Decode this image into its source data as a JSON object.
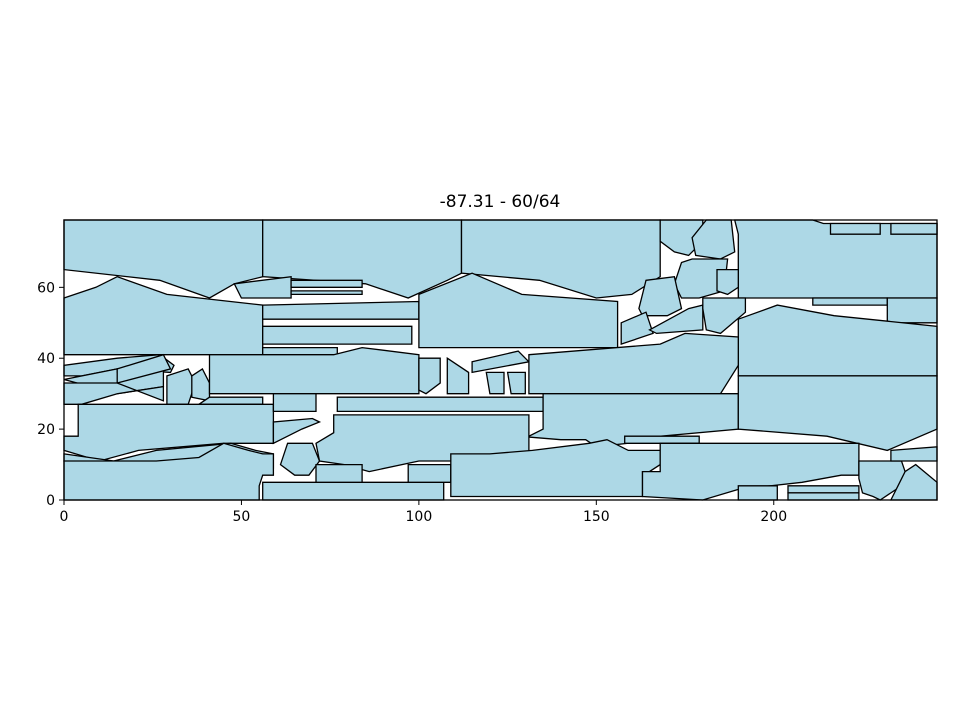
{
  "chart_data": {
    "type": "polygon-packing",
    "title": "-87.31 - 60/64",
    "xlabel": "",
    "ylabel": "",
    "xlim": [
      0,
      246
    ],
    "ylim": [
      0,
      79
    ],
    "x_ticks": [
      0,
      50,
      100,
      150,
      200
    ],
    "y_ticks": [
      0,
      20,
      40,
      60
    ],
    "grid": false,
    "legend": "none",
    "fill_color": "#add8e6",
    "edge_color": "#000000",
    "pieces": [
      [
        [
          0,
          79
        ],
        [
          56,
          79
        ],
        [
          56,
          63
        ],
        [
          48,
          61
        ],
        [
          41,
          57
        ],
        [
          27,
          62
        ],
        [
          0,
          65
        ]
      ],
      [
        [
          56,
          79
        ],
        [
          112,
          79
        ],
        [
          112,
          64
        ],
        [
          108,
          62
        ],
        [
          97,
          57
        ],
        [
          85,
          61
        ],
        [
          56,
          63
        ]
      ],
      [
        [
          112,
          79
        ],
        [
          168,
          79
        ],
        [
          168,
          63
        ],
        [
          160,
          58
        ],
        [
          150,
          57
        ],
        [
          134,
          62
        ],
        [
          112,
          64
        ]
      ],
      [
        [
          0,
          57
        ],
        [
          9,
          60
        ],
        [
          15,
          63
        ],
        [
          29,
          58
        ],
        [
          56,
          55
        ],
        [
          56,
          41
        ],
        [
          0,
          41
        ]
      ],
      [
        [
          56,
          55
        ],
        [
          56,
          51
        ],
        [
          100,
          51
        ],
        [
          100,
          56
        ]
      ],
      [
        [
          56,
          49
        ],
        [
          56,
          44
        ],
        [
          98,
          44
        ],
        [
          98,
          49
        ]
      ],
      [
        [
          56,
          43
        ],
        [
          56,
          41
        ],
        [
          77,
          41
        ],
        [
          77,
          43
        ]
      ],
      [
        [
          100,
          58
        ],
        [
          115,
          64
        ],
        [
          129,
          58
        ],
        [
          156,
          56
        ],
        [
          156,
          43
        ],
        [
          100,
          43
        ]
      ],
      [
        [
          48,
          61
        ],
        [
          64,
          63
        ],
        [
          64,
          57
        ],
        [
          50,
          57
        ]
      ],
      [
        [
          64,
          62
        ],
        [
          64,
          60
        ],
        [
          84,
          60
        ],
        [
          84,
          62
        ]
      ],
      [
        [
          64,
          59
        ],
        [
          64,
          58
        ],
        [
          84,
          58
        ],
        [
          84,
          59
        ]
      ],
      [
        [
          168,
          79
        ],
        [
          180,
          79
        ],
        [
          180,
          73
        ],
        [
          176,
          69
        ],
        [
          172,
          70
        ],
        [
          168,
          73
        ]
      ],
      [
        [
          181,
          79
        ],
        [
          188,
          79
        ],
        [
          189,
          70
        ],
        [
          185,
          68
        ],
        [
          178,
          69
        ],
        [
          177,
          74
        ]
      ],
      [
        [
          189,
          79
        ],
        [
          211,
          79
        ],
        [
          214,
          78
        ],
        [
          246,
          78
        ],
        [
          246,
          57
        ],
        [
          190,
          57
        ],
        [
          190,
          75
        ]
      ],
      [
        [
          216,
          78
        ],
        [
          230,
          78
        ],
        [
          230,
          75
        ],
        [
          216,
          75
        ]
      ],
      [
        [
          233,
          78
        ],
        [
          246,
          78
        ],
        [
          246,
          75
        ],
        [
          233,
          75
        ]
      ],
      [
        [
          177,
          68
        ],
        [
          187,
          68
        ],
        [
          186,
          59
        ],
        [
          179,
          57
        ],
        [
          174,
          57
        ],
        [
          172,
          61
        ],
        [
          174,
          67
        ]
      ],
      [
        [
          184,
          65
        ],
        [
          190,
          65
        ],
        [
          190,
          60
        ],
        [
          187,
          58
        ],
        [
          184,
          59
        ]
      ],
      [
        [
          164,
          62
        ],
        [
          172,
          63
        ],
        [
          174,
          54
        ],
        [
          170,
          52
        ],
        [
          163,
          52
        ],
        [
          162,
          54
        ]
      ],
      [
        [
          157,
          50
        ],
        [
          164,
          53
        ],
        [
          166,
          47
        ],
        [
          157,
          44
        ]
      ],
      [
        [
          165,
          48
        ],
        [
          176,
          54
        ],
        [
          180,
          55
        ],
        [
          180,
          48
        ],
        [
          167,
          47
        ]
      ],
      [
        [
          180,
          57
        ],
        [
          192,
          57
        ],
        [
          192,
          53
        ],
        [
          185,
          47
        ],
        [
          181,
          48
        ],
        [
          180,
          54
        ]
      ],
      [
        [
          211,
          57
        ],
        [
          232,
          57
        ],
        [
          232,
          55
        ],
        [
          211,
          55
        ]
      ],
      [
        [
          232,
          57
        ],
        [
          246,
          57
        ],
        [
          246,
          50
        ],
        [
          232,
          50
        ]
      ],
      [
        [
          190,
          51
        ],
        [
          201,
          55
        ],
        [
          217,
          52
        ],
        [
          246,
          49
        ],
        [
          246,
          35
        ],
        [
          190,
          35
        ]
      ],
      [
        [
          0,
          38
        ],
        [
          0,
          35
        ],
        [
          5,
          35
        ],
        [
          15,
          37
        ],
        [
          30,
          36
        ],
        [
          31,
          38
        ],
        [
          27,
          41
        ],
        [
          15,
          40
        ]
      ],
      [
        [
          0,
          34
        ],
        [
          15,
          37
        ],
        [
          15,
          36
        ],
        [
          28,
          37
        ],
        [
          28,
          32
        ],
        [
          15,
          30
        ]
      ],
      [
        [
          15,
          37
        ],
        [
          28,
          41
        ],
        [
          30,
          37
        ],
        [
          15,
          33
        ]
      ],
      [
        [
          0,
          33
        ],
        [
          0,
          27
        ],
        [
          5,
          27
        ],
        [
          15,
          30
        ],
        [
          28,
          32
        ],
        [
          28,
          28
        ],
        [
          15,
          33
        ]
      ],
      [
        [
          29,
          35
        ],
        [
          35,
          37
        ],
        [
          37,
          33
        ],
        [
          35,
          27
        ],
        [
          29,
          27
        ]
      ],
      [
        [
          36,
          29
        ],
        [
          41,
          28
        ],
        [
          41,
          33
        ],
        [
          39,
          37
        ],
        [
          36,
          35
        ]
      ],
      [
        [
          38,
          27
        ],
        [
          41,
          29
        ],
        [
          53,
          29
        ],
        [
          56,
          29
        ],
        [
          56,
          27
        ]
      ],
      [
        [
          41,
          41
        ],
        [
          41,
          30
        ],
        [
          100,
          30
        ],
        [
          100,
          34
        ],
        [
          100,
          41
        ],
        [
          84,
          43
        ],
        [
          76,
          41
        ],
        [
          68,
          41
        ]
      ],
      [
        [
          100,
          40
        ],
        [
          106,
          40
        ],
        [
          106,
          33
        ],
        [
          102,
          30
        ],
        [
          100,
          31
        ]
      ],
      [
        [
          108,
          40
        ],
        [
          114,
          36
        ],
        [
          114,
          30
        ],
        [
          108,
          30
        ]
      ],
      [
        [
          115,
          39
        ],
        [
          128,
          42
        ],
        [
          131,
          39
        ],
        [
          115,
          36
        ]
      ],
      [
        [
          119,
          36
        ],
        [
          124,
          36
        ],
        [
          124,
          30
        ],
        [
          120,
          30
        ]
      ],
      [
        [
          125,
          36
        ],
        [
          130,
          36
        ],
        [
          130,
          30
        ],
        [
          126,
          30
        ]
      ],
      [
        [
          131,
          41
        ],
        [
          168,
          44
        ],
        [
          175,
          47
        ],
        [
          190,
          46
        ],
        [
          190,
          38
        ],
        [
          185,
          30
        ],
        [
          131,
          30
        ]
      ],
      [
        [
          4,
          27
        ],
        [
          4,
          18
        ],
        [
          0,
          18
        ],
        [
          0,
          14
        ],
        [
          10,
          11
        ],
        [
          21,
          14
        ],
        [
          45,
          16
        ],
        [
          59,
          16
        ],
        [
          59,
          27
        ]
      ],
      [
        [
          59,
          30
        ],
        [
          59,
          25
        ],
        [
          71,
          25
        ],
        [
          71,
          30
        ]
      ],
      [
        [
          77,
          29
        ],
        [
          77,
          25
        ],
        [
          135,
          25
        ],
        [
          135,
          29
        ]
      ],
      [
        [
          135,
          30
        ],
        [
          135,
          20
        ],
        [
          131,
          18
        ],
        [
          128,
          18
        ],
        [
          140,
          17
        ],
        [
          147,
          17
        ],
        [
          150,
          15
        ],
        [
          168,
          17
        ],
        [
          168,
          18
        ],
        [
          190,
          20
        ],
        [
          190,
          30
        ]
      ],
      [
        [
          190,
          35
        ],
        [
          190,
          20
        ],
        [
          215,
          18
        ],
        [
          232,
          14
        ],
        [
          246,
          20
        ],
        [
          246,
          35
        ]
      ],
      [
        [
          158,
          18
        ],
        [
          179,
          18
        ],
        [
          179,
          16
        ],
        [
          158,
          16
        ]
      ],
      [
        [
          0,
          11
        ],
        [
          0,
          13
        ],
        [
          14,
          11
        ],
        [
          26,
          14
        ],
        [
          47,
          16
        ],
        [
          54,
          14
        ],
        [
          59,
          13
        ],
        [
          59,
          9
        ]
      ],
      [
        [
          59,
          22
        ],
        [
          59,
          16
        ],
        [
          67,
          20
        ],
        [
          72,
          22
        ],
        [
          70,
          23
        ]
      ],
      [
        [
          63,
          16
        ],
        [
          70,
          16
        ],
        [
          72,
          11
        ],
        [
          69,
          7
        ],
        [
          65,
          7
        ],
        [
          61,
          10
        ]
      ],
      [
        [
          76,
          24
        ],
        [
          76,
          19
        ],
        [
          71,
          16
        ],
        [
          72,
          11
        ],
        [
          79,
          10
        ],
        [
          86,
          8
        ],
        [
          100,
          11
        ],
        [
          131,
          11
        ],
        [
          131,
          24
        ]
      ],
      [
        [
          0,
          11
        ],
        [
          26,
          11
        ],
        [
          38,
          12
        ],
        [
          45,
          16
        ],
        [
          52,
          14
        ],
        [
          56,
          13
        ],
        [
          59,
          13
        ],
        [
          59,
          7
        ],
        [
          56,
          7
        ],
        [
          55,
          4
        ],
        [
          55,
          0
        ],
        [
          0,
          0
        ]
      ],
      [
        [
          56,
          5
        ],
        [
          56,
          0
        ],
        [
          107,
          0
        ],
        [
          107,
          5
        ]
      ],
      [
        [
          71,
          10
        ],
        [
          84,
          10
        ],
        [
          84,
          5
        ],
        [
          71,
          5
        ]
      ],
      [
        [
          97,
          10
        ],
        [
          109,
          10
        ],
        [
          109,
          5
        ],
        [
          97,
          5
        ]
      ],
      [
        [
          109,
          13
        ],
        [
          120,
          13
        ],
        [
          132,
          14
        ],
        [
          148,
          16
        ],
        [
          153,
          17
        ],
        [
          159,
          14
        ],
        [
          168,
          14
        ],
        [
          168,
          10
        ],
        [
          165,
          8
        ],
        [
          163,
          8
        ],
        [
          163,
          1
        ],
        [
          109,
          1
        ]
      ],
      [
        [
          168,
          16
        ],
        [
          224,
          16
        ],
        [
          224,
          7
        ],
        [
          219,
          7
        ],
        [
          208,
          5
        ],
        [
          190,
          3
        ],
        [
          180,
          0
        ],
        [
          163,
          1
        ],
        [
          163,
          8
        ],
        [
          168,
          8
        ]
      ],
      [
        [
          190,
          4
        ],
        [
          190,
          0
        ],
        [
          201,
          0
        ],
        [
          201,
          4
        ]
      ],
      [
        [
          204,
          4
        ],
        [
          204,
          2
        ],
        [
          224,
          2
        ],
        [
          224,
          4
        ]
      ],
      [
        [
          204,
          2
        ],
        [
          204,
          0
        ],
        [
          224,
          0
        ],
        [
          224,
          2
        ]
      ],
      [
        [
          224,
          11
        ],
        [
          236,
          11
        ],
        [
          237,
          8
        ],
        [
          236,
          4
        ],
        [
          230,
          0
        ],
        [
          228,
          1
        ],
        [
          225,
          2
        ],
        [
          224,
          6
        ]
      ],
      [
        [
          233,
          14
        ],
        [
          246,
          15
        ],
        [
          246,
          11
        ],
        [
          233,
          11
        ]
      ],
      [
        [
          237,
          8
        ],
        [
          240,
          10
        ],
        [
          246,
          5
        ],
        [
          246,
          0
        ],
        [
          233,
          0
        ],
        [
          235,
          4
        ]
      ]
    ]
  }
}
